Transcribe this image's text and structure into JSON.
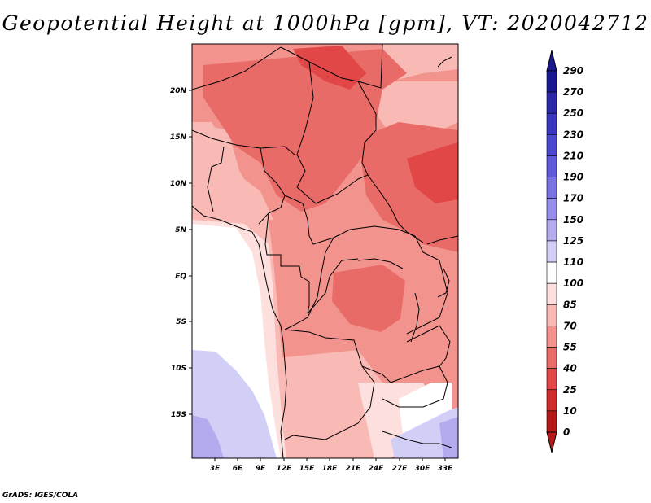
{
  "title": "Geopotential Height at 1000hPa [gpm], VT: 2020042712",
  "credit": "GrADS: IGES/COLA",
  "lat_ticks": [
    "20N",
    "15N",
    "10N",
    "5N",
    "EQ",
    "5S",
    "10S",
    "15S"
  ],
  "lon_ticks": [
    "3E",
    "6E",
    "9E",
    "12E",
    "15E",
    "18E",
    "21E",
    "24E",
    "27E",
    "30E",
    "33E"
  ],
  "colorbar": {
    "levels": [
      "290",
      "270",
      "250",
      "230",
      "210",
      "190",
      "170",
      "150",
      "125",
      "110",
      "100",
      "85",
      "70",
      "55",
      "40",
      "25",
      "10",
      "0"
    ],
    "colors": [
      "#1a1890",
      "#2b29a8",
      "#3a36bd",
      "#4b47cf",
      "#5f5ad9",
      "#7a72e3",
      "#968ee9",
      "#b2acef",
      "#d2cff7",
      "#ffffff",
      "#fde0de",
      "#f9bab5",
      "#f2938e",
      "#e96b68",
      "#e14747",
      "#d12c2c",
      "#b51818"
    ],
    "top_arrow_color": "#1a1890",
    "bottom_arrow_color": "#b51818"
  },
  "field_colors": {
    "deep_blue": "#b2acef",
    "light_blue": "#d2cff7",
    "white": "#ffffff",
    "pale_pink": "#fde0de",
    "light_pink": "#f9bab5",
    "pink": "#f2938e",
    "salmon": "#e96b68",
    "red": "#e14747"
  }
}
